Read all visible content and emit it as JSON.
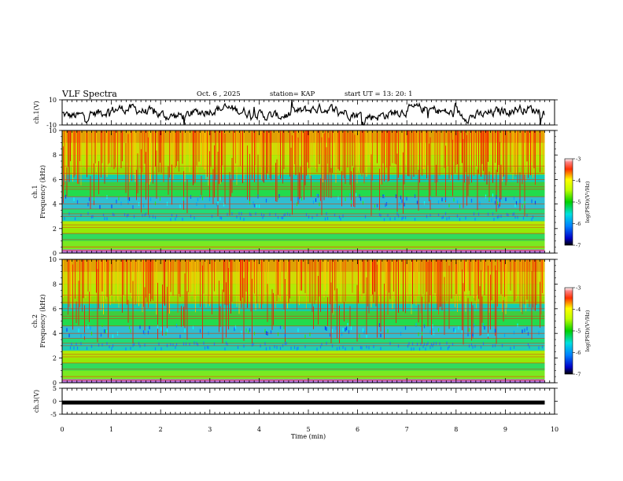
{
  "header": {
    "title": "VLF Spectra",
    "date": "Oct. 6 , 2025",
    "station": "station= KAP",
    "start_ut": "start UT = 13: 20: 1"
  },
  "chart_data": [
    {
      "id": "ch1-waveform",
      "type": "line",
      "ylabel": "ch.1(V)",
      "ylim": [
        -10,
        10
      ],
      "yticks": [
        "10",
        "-10"
      ],
      "xlim": [
        0,
        10
      ],
      "series_end_min": 9.8
    },
    {
      "id": "ch1-spectrogram",
      "type": "heatmap",
      "ylabel_line1": "ch.1",
      "ylabel_line2": "Frequency (kHz)",
      "ylim": [
        0,
        10
      ],
      "yticks": [
        "0",
        "2",
        "4",
        "6",
        "8",
        "10"
      ],
      "xlim": [
        0,
        10
      ],
      "data_end_min": 9.8,
      "colorbar": {
        "label": "log(PSD)(V²/Hz)",
        "range": [
          -7,
          -3
        ],
        "ticks": [
          "-3",
          "-4",
          "-5",
          "-6",
          "-7"
        ]
      }
    },
    {
      "id": "ch2-spectrogram",
      "type": "heatmap",
      "ylabel_line1": "ch.2",
      "ylabel_line2": "Frequency (kHz)",
      "ylim": [
        0,
        10
      ],
      "yticks": [
        "0",
        "2",
        "4",
        "6",
        "8",
        "10"
      ],
      "xlim": [
        0,
        10
      ],
      "data_end_min": 9.8,
      "colorbar": {
        "label": "log(PSD)(V²/Hz)",
        "range": [
          -7,
          -3
        ],
        "ticks": [
          "-3",
          "-4",
          "-5",
          "-6",
          "-7"
        ]
      }
    },
    {
      "id": "ch3-waveform",
      "type": "line",
      "ylabel": "ch.3(V)",
      "ylim": [
        -5,
        5
      ],
      "yticks": [
        "5",
        "0",
        "-5"
      ],
      "xlim": [
        0,
        10
      ],
      "level": -0.5,
      "series_end_min": 9.8
    }
  ],
  "xaxis": {
    "label": "Time (min)",
    "ticks": [
      "0",
      "1",
      "2",
      "3",
      "4",
      "5",
      "6",
      "7",
      "8",
      "9",
      "10"
    ]
  }
}
